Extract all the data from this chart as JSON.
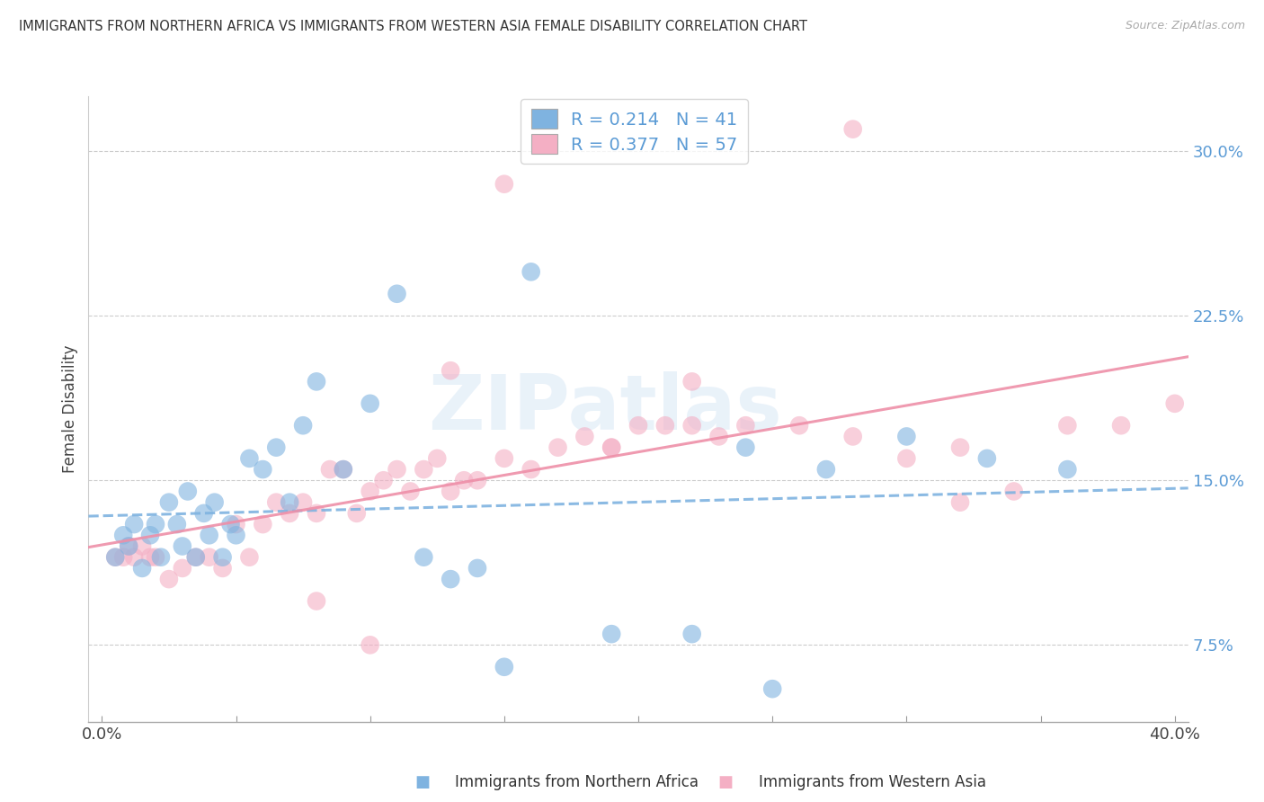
{
  "title": "IMMIGRANTS FROM NORTHERN AFRICA VS IMMIGRANTS FROM WESTERN ASIA FEMALE DISABILITY CORRELATION CHART",
  "source": "Source: ZipAtlas.com",
  "ylabel": "Female Disability",
  "ytick_labels": [
    "7.5%",
    "15.0%",
    "22.5%",
    "30.0%"
  ],
  "ytick_vals": [
    0.075,
    0.15,
    0.225,
    0.3
  ],
  "xtick_vals": [
    0.0,
    0.05,
    0.1,
    0.15,
    0.2,
    0.25,
    0.3,
    0.35,
    0.4
  ],
  "xtick_labels": [
    "0.0%",
    "",
    "",
    "",
    "",
    "",
    "",
    "",
    "40.0%"
  ],
  "xlim": [
    -0.005,
    0.405
  ],
  "ylim": [
    0.04,
    0.325
  ],
  "legend1_r": "0.214",
  "legend1_n": "41",
  "legend2_r": "0.377",
  "legend2_n": "57",
  "color_blue": "#7fb3e0",
  "color_pink": "#f4afc4",
  "line_blue": "#7fb3e0",
  "line_pink": "#ee8fa8",
  "watermark": "ZIPatlas",
  "series1_name": "Immigrants from Northern Africa",
  "series2_name": "Immigrants from Western Asia",
  "na_x": [
    0.005,
    0.008,
    0.01,
    0.012,
    0.015,
    0.018,
    0.02,
    0.022,
    0.025,
    0.028,
    0.03,
    0.032,
    0.035,
    0.038,
    0.04,
    0.042,
    0.045,
    0.048,
    0.05,
    0.055,
    0.06,
    0.065,
    0.07,
    0.075,
    0.08,
    0.09,
    0.1,
    0.11,
    0.12,
    0.13,
    0.14,
    0.15,
    0.16,
    0.19,
    0.22,
    0.24,
    0.27,
    0.3,
    0.33,
    0.36,
    0.25
  ],
  "na_y": [
    0.115,
    0.125,
    0.12,
    0.13,
    0.11,
    0.125,
    0.13,
    0.115,
    0.14,
    0.13,
    0.12,
    0.145,
    0.115,
    0.135,
    0.125,
    0.14,
    0.115,
    0.13,
    0.125,
    0.16,
    0.155,
    0.165,
    0.14,
    0.175,
    0.195,
    0.155,
    0.185,
    0.235,
    0.115,
    0.105,
    0.11,
    0.065,
    0.245,
    0.08,
    0.08,
    0.165,
    0.155,
    0.17,
    0.16,
    0.155,
    0.055
  ],
  "wa_x": [
    0.005,
    0.008,
    0.01,
    0.012,
    0.015,
    0.018,
    0.02,
    0.025,
    0.03,
    0.035,
    0.04,
    0.045,
    0.05,
    0.055,
    0.06,
    0.065,
    0.07,
    0.075,
    0.08,
    0.085,
    0.09,
    0.095,
    0.1,
    0.105,
    0.11,
    0.115,
    0.12,
    0.125,
    0.13,
    0.135,
    0.14,
    0.15,
    0.16,
    0.17,
    0.18,
    0.19,
    0.2,
    0.21,
    0.22,
    0.23,
    0.24,
    0.26,
    0.28,
    0.3,
    0.32,
    0.34,
    0.36,
    0.38,
    0.4,
    0.15,
    0.22,
    0.13,
    0.08,
    0.1,
    0.19,
    0.28,
    0.32
  ],
  "wa_y": [
    0.115,
    0.115,
    0.12,
    0.115,
    0.12,
    0.115,
    0.115,
    0.105,
    0.11,
    0.115,
    0.115,
    0.11,
    0.13,
    0.115,
    0.13,
    0.14,
    0.135,
    0.14,
    0.135,
    0.155,
    0.155,
    0.135,
    0.145,
    0.15,
    0.155,
    0.145,
    0.155,
    0.16,
    0.145,
    0.15,
    0.15,
    0.16,
    0.155,
    0.165,
    0.17,
    0.165,
    0.175,
    0.175,
    0.175,
    0.17,
    0.175,
    0.175,
    0.17,
    0.16,
    0.165,
    0.145,
    0.175,
    0.175,
    0.185,
    0.285,
    0.195,
    0.2,
    0.095,
    0.075,
    0.165,
    0.31,
    0.14
  ]
}
